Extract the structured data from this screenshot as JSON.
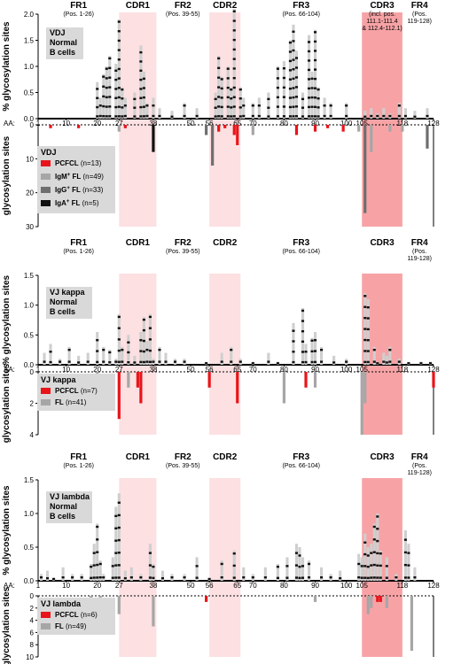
{
  "chart_data": [
    {
      "type": "bar",
      "upper_ylabel": "% glycosylation sites",
      "lower_ylabel": "glycosylation sites",
      "upper_ylim": [
        0,
        2.0
      ],
      "upper_yticks": [
        "0.0",
        "0.5",
        "1.0",
        "1.5",
        "2.0"
      ],
      "lower_ylim": [
        0,
        30
      ],
      "lower_yticks": [
        "0",
        "10",
        "20",
        "30"
      ],
      "aa_prefix": "AA:",
      "aa_ticks": [
        "1",
        "10",
        "20",
        "27",
        "38",
        "50",
        "56",
        "65",
        "70",
        "80",
        "90",
        "100",
        "105",
        "118",
        "128"
      ],
      "regions": [
        {
          "name": "FR1",
          "sub": [
            "(Pos. 1-26)"
          ],
          "start": 1,
          "end": 26,
          "shade": "#ffffff"
        },
        {
          "name": "CDR1",
          "sub": [],
          "start": 27,
          "end": 38,
          "shade": "#fde0e2"
        },
        {
          "name": "FR2",
          "sub": [
            "(Pos. 39-55)"
          ],
          "start": 39,
          "end": 55,
          "shade": "#ffffff"
        },
        {
          "name": "CDR2",
          "sub": [],
          "start": 56,
          "end": 65,
          "shade": "#fde0e2"
        },
        {
          "name": "FR3",
          "sub": [
            "(Pos. 66-104)"
          ],
          "start": 66,
          "end": 104,
          "shade": "#ffffff"
        },
        {
          "name": "CDR3",
          "sub": [
            "(incl. pos.",
            "111.1-111.4",
            "& 112.4-112.1)"
          ],
          "start": 105,
          "end": 117,
          "shade": "#f7a3a6"
        },
        {
          "name": "FR4",
          "sub": [
            "(Pos.",
            "119-128)"
          ],
          "start": 118,
          "end": 128,
          "shade": "#ffffff"
        }
      ],
      "upper_legend": [
        "VDJ",
        "Normal",
        "B cells"
      ],
      "lower_legend_title": "VDJ",
      "series": [
        {
          "name": "PCFCL",
          "note": "(n=13)",
          "color": "#e8141a"
        },
        {
          "name": "IgM",
          "sup": "+",
          "suffix": " FL",
          "note": "(n=49)",
          "color": "#a6a6a6"
        },
        {
          "name": "IgG",
          "sup": "+",
          "suffix": " FL",
          "note": "(n=33)",
          "color": "#6e6e6e"
        },
        {
          "name": "IgA",
          "sup": "+",
          "suffix": " FL",
          "note": "(n=5)",
          "color": "#111111"
        }
      ],
      "upper_values": [
        [
          20,
          0.7
        ],
        [
          21,
          0.4
        ],
        [
          22,
          0.85
        ],
        [
          23,
          1.0
        ],
        [
          24,
          1.2
        ],
        [
          26,
          1.05
        ],
        [
          27,
          1.9
        ],
        [
          28,
          0.6
        ],
        [
          29,
          0.4
        ],
        [
          32,
          0.5
        ],
        [
          34,
          1.4
        ],
        [
          35,
          0.9
        ],
        [
          36,
          0.3
        ],
        [
          38,
          0.4
        ],
        [
          40,
          0.2
        ],
        [
          44,
          0.15
        ],
        [
          48,
          0.3
        ],
        [
          52,
          0.2
        ],
        [
          58,
          0.5
        ],
        [
          59,
          1.2
        ],
        [
          60,
          0.8
        ],
        [
          62,
          1.0
        ],
        [
          63,
          0.6
        ],
        [
          64,
          2.1
        ],
        [
          66,
          0.6
        ],
        [
          67,
          0.4
        ],
        [
          70,
          0.3
        ],
        [
          72,
          0.4
        ],
        [
          75,
          0.5
        ],
        [
          78,
          1.0
        ],
        [
          80,
          1.1
        ],
        [
          82,
          1.5
        ],
        [
          83,
          1.8
        ],
        [
          84,
          1.3
        ],
        [
          86,
          0.5
        ],
        [
          88,
          1.6
        ],
        [
          89,
          0.9
        ],
        [
          90,
          1.7
        ],
        [
          91,
          0.6
        ],
        [
          93,
          0.4
        ],
        [
          95,
          0.3
        ],
        [
          100,
          0.3
        ],
        [
          106,
          0.15
        ],
        [
          108,
          0.2
        ],
        [
          110,
          0.1
        ],
        [
          112,
          0.2
        ],
        [
          114,
          0.1
        ],
        [
          117,
          0.3
        ],
        [
          119,
          0.2
        ],
        [
          122,
          0.15
        ],
        [
          126,
          0.2
        ]
      ],
      "lower_values": [
        [
          5,
          1,
          "#e8141a"
        ],
        [
          14,
          1,
          "#e8141a"
        ],
        [
          27,
          2,
          "#a6a6a6"
        ],
        [
          29,
          1,
          "#e8141a"
        ],
        [
          38,
          8,
          "#111111"
        ],
        [
          55,
          3,
          "#6e6e6e"
        ],
        [
          57,
          12,
          "#6e6e6e"
        ],
        [
          59,
          2,
          "#e8141a"
        ],
        [
          61,
          1,
          "#e8141a"
        ],
        [
          64,
          3,
          "#e8141a"
        ],
        [
          65,
          6,
          "#e8141a"
        ],
        [
          70,
          3,
          "#a6a6a6"
        ],
        [
          84,
          3,
          "#e8141a"
        ],
        [
          90,
          2,
          "#e8141a"
        ],
        [
          94,
          1,
          "#e8141a"
        ],
        [
          99,
          2,
          "#e8141a"
        ],
        [
          104,
          2,
          "#a6a6a6"
        ],
        [
          106,
          26,
          "#6e6e6e"
        ],
        [
          108,
          8,
          "#a6a6a6"
        ],
        [
          114,
          2,
          "#a6a6a6"
        ],
        [
          118,
          2,
          "#a6a6a6"
        ],
        [
          126,
          7,
          "#6e6e6e"
        ]
      ]
    },
    {
      "type": "bar",
      "upper_ylabel": "% glycosylation sites",
      "lower_ylabel": "glycosylation sites",
      "upper_ylim": [
        0,
        1.5
      ],
      "upper_yticks": [
        "0.0",
        "0.5",
        "1.0",
        "1.5"
      ],
      "lower_ylim": [
        0,
        4
      ],
      "lower_yticks": [
        "0",
        "2",
        "4"
      ],
      "aa_prefix": "AA:",
      "aa_ticks": [
        "1",
        "10",
        "20",
        "27",
        "38",
        "50",
        "56",
        "65",
        "70",
        "80",
        "90",
        "100",
        "105",
        "118",
        "128"
      ],
      "regions": [
        {
          "name": "FR1",
          "sub": [
            "(Pos. 1-26)"
          ],
          "start": 1,
          "end": 26,
          "shade": "#ffffff"
        },
        {
          "name": "CDR1",
          "sub": [],
          "start": 27,
          "end": 38,
          "shade": "#fde0e2"
        },
        {
          "name": "FR2",
          "sub": [
            "(Pos. 39-55)"
          ],
          "start": 39,
          "end": 55,
          "shade": "#ffffff"
        },
        {
          "name": "CDR2",
          "sub": [],
          "start": 56,
          "end": 65,
          "shade": "#fde0e2"
        },
        {
          "name": "FR3",
          "sub": [
            "(Pos. 66-104)"
          ],
          "start": 66,
          "end": 104,
          "shade": "#ffffff"
        },
        {
          "name": "CDR3",
          "sub": [],
          "start": 105,
          "end": 117,
          "shade": "#f7a3a6"
        },
        {
          "name": "FR4",
          "sub": [
            "(Pos.",
            "119-128)"
          ],
          "start": 118,
          "end": 128,
          "shade": "#ffffff"
        }
      ],
      "upper_legend": [
        "VJ kappa",
        "Normal",
        "B cells"
      ],
      "lower_legend_title": "VJ kappa",
      "series": [
        {
          "name": "PCFCL",
          "note": "(n=7)",
          "color": "#e8141a"
        },
        {
          "name": "FL",
          "note": "(n=41)",
          "color": "#a6a6a6"
        }
      ],
      "upper_values": [
        [
          3,
          0.2
        ],
        [
          5,
          0.35
        ],
        [
          8,
          0.1
        ],
        [
          11,
          0.3
        ],
        [
          14,
          0.15
        ],
        [
          17,
          0.2
        ],
        [
          20,
          0.55
        ],
        [
          22,
          0.3
        ],
        [
          24,
          0.25
        ],
        [
          26,
          0.1
        ],
        [
          27,
          0.85
        ],
        [
          28,
          0.3
        ],
        [
          30,
          0.5
        ],
        [
          32,
          0.15
        ],
        [
          34,
          0.55
        ],
        [
          35,
          0.8
        ],
        [
          36,
          0.4
        ],
        [
          37,
          0.85
        ],
        [
          38,
          0.1
        ],
        [
          40,
          0.3
        ],
        [
          42,
          0.2
        ],
        [
          45,
          0.1
        ],
        [
          48,
          0.1
        ],
        [
          55,
          0.05
        ],
        [
          60,
          0.2
        ],
        [
          63,
          0.3
        ],
        [
          66,
          0.1
        ],
        [
          70,
          0.05
        ],
        [
          75,
          0.2
        ],
        [
          78,
          0.05
        ],
        [
          83,
          0.7
        ],
        [
          86,
          0.95
        ],
        [
          87,
          0.35
        ],
        [
          89,
          0.45
        ],
        [
          90,
          0.55
        ],
        [
          92,
          0.3
        ],
        [
          96,
          0.15
        ],
        [
          100,
          0.1
        ],
        [
          106,
          1.2
        ],
        [
          107,
          1.1
        ],
        [
          109,
          0.3
        ],
        [
          110,
          0.05
        ],
        [
          112,
          0.2
        ],
        [
          113,
          0.15
        ],
        [
          114,
          0.3
        ],
        [
          117,
          0.1
        ],
        [
          120,
          0.05
        ],
        [
          124,
          0.05
        ],
        [
          127,
          0.05
        ]
      ],
      "lower_values": [
        [
          20,
          1,
          "#a6a6a6"
        ],
        [
          27,
          3,
          "#e8141a"
        ],
        [
          30,
          1,
          "#a6a6a6"
        ],
        [
          33,
          1,
          "#e8141a"
        ],
        [
          34,
          2,
          "#e8141a"
        ],
        [
          56,
          1,
          "#e8141a"
        ],
        [
          65,
          2,
          "#e8141a"
        ],
        [
          80,
          2,
          "#a6a6a6"
        ],
        [
          87,
          1,
          "#e8141a"
        ],
        [
          90,
          1,
          "#a6a6a6"
        ],
        [
          105,
          4,
          "#a6a6a6"
        ],
        [
          106,
          2,
          "#a6a6a6"
        ],
        [
          128,
          1,
          "#e8141a"
        ]
      ]
    },
    {
      "type": "bar",
      "upper_ylabel": "% glycosylation sites",
      "lower_ylabel": "glycosylation sites",
      "upper_ylim": [
        0,
        1.5
      ],
      "upper_yticks": [
        "0.0",
        "0.5",
        "1.0",
        "1.5"
      ],
      "lower_ylim": [
        0,
        10
      ],
      "lower_yticks": [
        "0",
        "2",
        "4",
        "6",
        "8",
        "10"
      ],
      "aa_prefix": "AA:",
      "aa_ticks": [
        "1",
        "10",
        "20",
        "27",
        "38",
        "50",
        "56",
        "65",
        "70",
        "80",
        "90",
        "100",
        "105",
        "118",
        "128"
      ],
      "regions": [
        {
          "name": "FR1",
          "sub": [
            "(Pos. 1-26)"
          ],
          "start": 1,
          "end": 26,
          "shade": "#ffffff"
        },
        {
          "name": "CDR1",
          "sub": [],
          "start": 27,
          "end": 38,
          "shade": "#fde0e2"
        },
        {
          "name": "FR2",
          "sub": [
            "(Pos. 39-55)"
          ],
          "start": 39,
          "end": 55,
          "shade": "#ffffff"
        },
        {
          "name": "CDR2",
          "sub": [],
          "start": 56,
          "end": 65,
          "shade": "#fde0e2"
        },
        {
          "name": "FR3",
          "sub": [
            "(Pos. 66-104)"
          ],
          "start": 66,
          "end": 104,
          "shade": "#ffffff"
        },
        {
          "name": "CDR3",
          "sub": [],
          "start": 105,
          "end": 117,
          "shade": "#f7a3a6"
        },
        {
          "name": "FR4",
          "sub": [
            "(Pos.",
            "119-128)"
          ],
          "start": 118,
          "end": 128,
          "shade": "#ffffff"
        }
      ],
      "upper_legend": [
        "VJ lambda",
        "Normal",
        "B cells"
      ],
      "lower_legend_title": "VJ lambda",
      "series": [
        {
          "name": "PCFCL",
          "note": "(n=6)",
          "color": "#e8141a"
        },
        {
          "name": "FL",
          "note": "(n=49)",
          "color": "#a6a6a6"
        }
      ],
      "upper_values": [
        [
          2,
          0.1
        ],
        [
          4,
          0.15
        ],
        [
          6,
          0.05
        ],
        [
          9,
          0.2
        ],
        [
          12,
          0.1
        ],
        [
          15,
          0.1
        ],
        [
          18,
          0.25
        ],
        [
          19,
          0.55
        ],
        [
          20,
          0.85
        ],
        [
          21,
          0.3
        ],
        [
          22,
          0.1
        ],
        [
          25,
          0.35
        ],
        [
          26,
          1.1
        ],
        [
          27,
          1.3
        ],
        [
          29,
          0.15
        ],
        [
          31,
          0.2
        ],
        [
          34,
          0.1
        ],
        [
          37,
          0.55
        ],
        [
          38,
          0.25
        ],
        [
          41,
          0.15
        ],
        [
          44,
          0.1
        ],
        [
          48,
          0.1
        ],
        [
          52,
          0.35
        ],
        [
          56,
          0.05
        ],
        [
          60,
          0.3
        ],
        [
          64,
          0.45
        ],
        [
          67,
          0.2
        ],
        [
          70,
          0.1
        ],
        [
          74,
          0.2
        ],
        [
          78,
          0.25
        ],
        [
          81,
          0.35
        ],
        [
          84,
          0.55
        ],
        [
          85,
          0.5
        ],
        [
          86,
          0.35
        ],
        [
          88,
          0.3
        ],
        [
          92,
          0.2
        ],
        [
          95,
          0.1
        ],
        [
          98,
          0.15
        ],
        [
          104,
          0.4
        ],
        [
          105,
          0.35
        ],
        [
          106,
          0.7
        ],
        [
          107,
          0.5
        ],
        [
          108,
          0.55
        ],
        [
          109,
          0.85
        ],
        [
          110,
          1.0
        ],
        [
          111,
          0.45
        ],
        [
          113,
          0.35
        ],
        [
          116,
          0.1
        ],
        [
          119,
          0.75
        ],
        [
          120,
          0.55
        ],
        [
          122,
          0.2
        ]
      ],
      "lower_values": [
        [
          18,
          2,
          "#a6a6a6"
        ],
        [
          21,
          2,
          "#a6a6a6"
        ],
        [
          27,
          3,
          "#a6a6a6"
        ],
        [
          38,
          5,
          "#a6a6a6"
        ],
        [
          55,
          1,
          "#e8141a"
        ],
        [
          90,
          1,
          "#a6a6a6"
        ],
        [
          107,
          3,
          "#a6a6a6"
        ],
        [
          108,
          2,
          "#a6a6a6"
        ],
        [
          110,
          1,
          "#e8141a"
        ],
        [
          111,
          1,
          "#e8141a"
        ],
        [
          113,
          2,
          "#a6a6a6"
        ],
        [
          121,
          9,
          "#a6a6a6"
        ]
      ]
    }
  ]
}
